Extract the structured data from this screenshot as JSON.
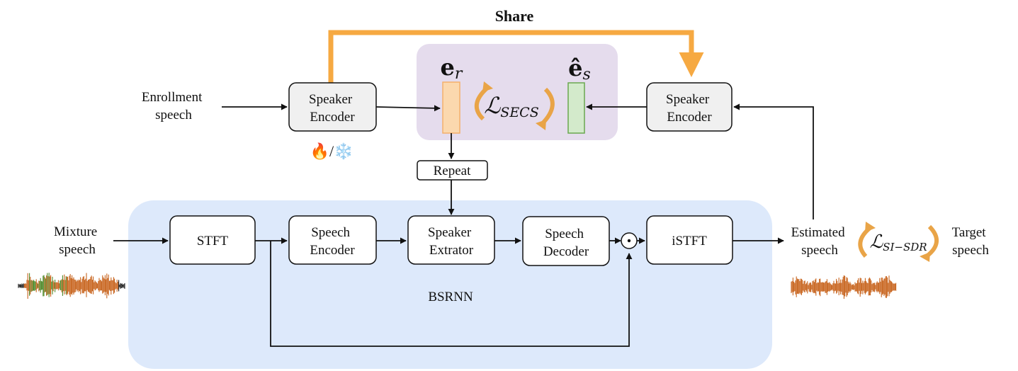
{
  "share_label": "Share",
  "inputs": {
    "enrollment": [
      "Enrollment",
      "speech"
    ],
    "mixture": [
      "Mixture",
      "speech"
    ]
  },
  "outputs": {
    "estimated": [
      "Estimated",
      "speech"
    ],
    "target": [
      "Target",
      "speech"
    ]
  },
  "blocks": {
    "speaker_encoder_left": [
      "Speaker",
      "Encoder"
    ],
    "speaker_encoder_right": [
      "Speaker",
      "Encoder"
    ],
    "repeat": "Repeat",
    "stft": "STFT",
    "speech_encoder": [
      "Speech",
      "Encoder"
    ],
    "speaker_extractor": [
      "Speaker",
      "Extrator"
    ],
    "speech_decoder": [
      "Speech",
      "Decoder"
    ],
    "istft": "iSTFT"
  },
  "region_label": "BSRNN",
  "trainable_marker": "🔥/❄️",
  "embeddings": {
    "reference": {
      "base": "e",
      "sub": "r"
    },
    "estimated": {
      "base": "ê",
      "sub": "s"
    }
  },
  "losses": {
    "secs": {
      "base": "ℒ",
      "sub": "SECS"
    },
    "sisdr": {
      "base": "ℒ",
      "sub": "SI−SDR"
    }
  },
  "colors": {
    "share_arrow": "#f6a942",
    "loss_arrow": "#e9a447",
    "embedding_panel": "#e5dced",
    "bsrnn_panel": "#dde9fb",
    "ref_embedding": "#fbd8ae",
    "est_embedding": "#d3eacb",
    "waveform_orange": "#c8641e",
    "waveform_green": "#4f8a2a"
  }
}
